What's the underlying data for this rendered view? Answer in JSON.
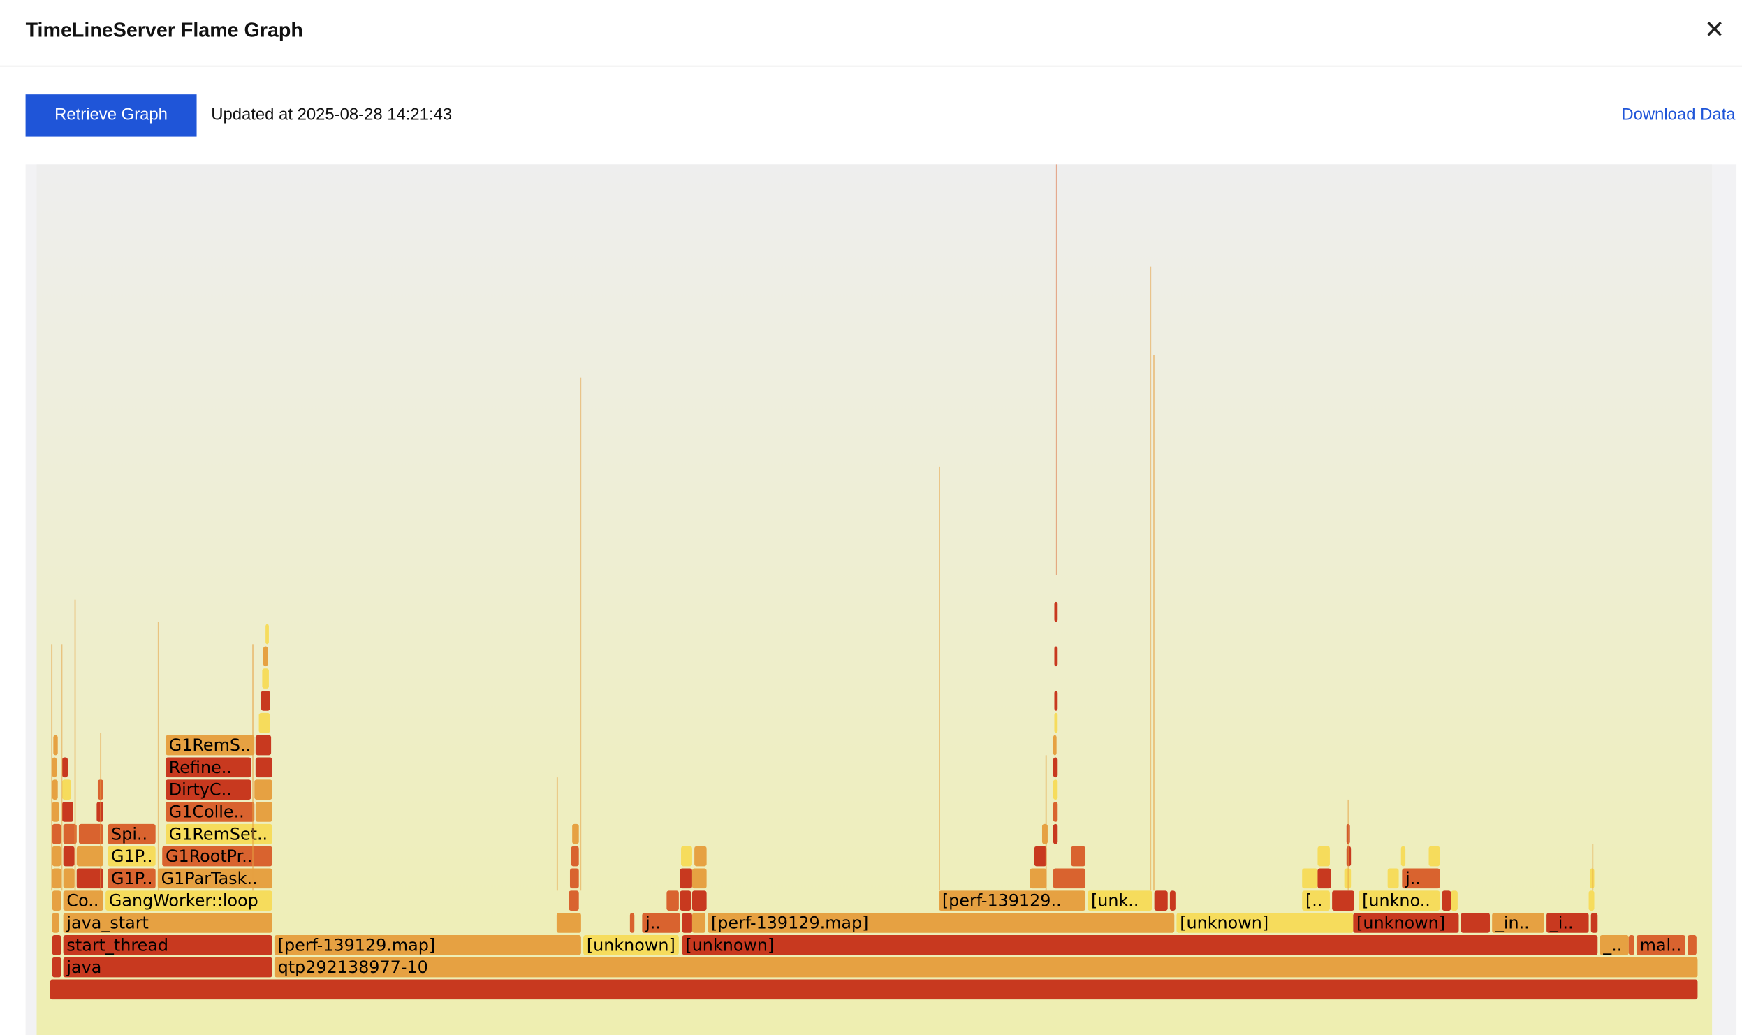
{
  "header": {
    "title": "TimeLineServer Flame Graph"
  },
  "toolbar": {
    "button": "Retrieve Graph",
    "updated": "Updated at 2025-08-28 14:21:43",
    "download": "Download Data"
  },
  "flame": {
    "frames": [
      "java",
      "qtp292138977-10",
      "start_thread",
      "[perf-139129.map]",
      "[unknown]",
      "[unknown]",
      "_..",
      "mal..",
      "java_start",
      "j..",
      "[perf-139129.map]",
      "[unknown]",
      "[unknown]",
      "_in..",
      "_i..",
      "Co..",
      "GangWorker::loop",
      "[perf-139129..",
      "[unk..",
      "[..",
      "[unkno..",
      "G1P..",
      "G1ParTask..",
      "j..",
      "G1P..",
      "G1RootPr..",
      "Spi..",
      "G1RemSet..",
      "G1Colle..",
      "DirtyC..",
      "Refine..",
      "G1RemS.."
    ]
  }
}
